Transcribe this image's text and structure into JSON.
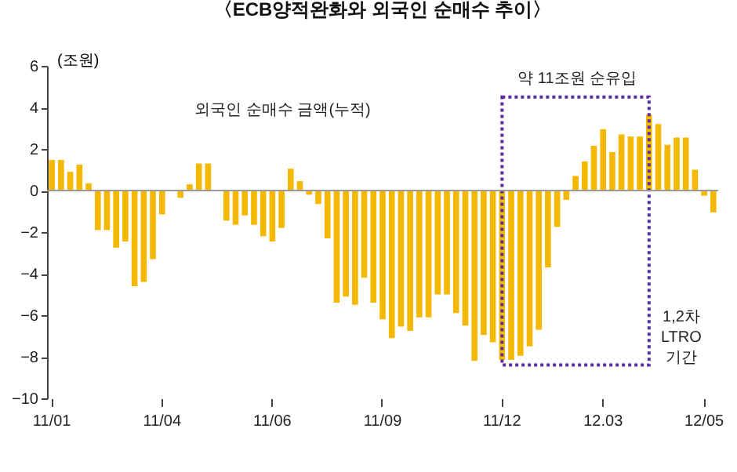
{
  "chart_data": {
    "type": "bar",
    "title": "〈ECB양적완화와 외국인 순매수 추이〉",
    "ylabel": "(조원)",
    "categories": [
      "11/01",
      null,
      null,
      null,
      null,
      null,
      null,
      null,
      null,
      null,
      null,
      null,
      "11/04",
      null,
      null,
      null,
      null,
      null,
      null,
      null,
      null,
      null,
      null,
      null,
      "11/06",
      null,
      null,
      null,
      null,
      null,
      null,
      null,
      null,
      null,
      null,
      null,
      "11/09",
      null,
      null,
      null,
      null,
      null,
      null,
      null,
      null,
      null,
      null,
      null,
      null,
      "11/12",
      null,
      null,
      null,
      null,
      null,
      null,
      null,
      null,
      null,
      null,
      "12.03",
      null,
      null,
      null,
      null,
      null,
      null,
      null,
      null,
      null,
      null,
      "12/05",
      null
    ],
    "values": [
      1.47,
      1.47,
      0.9,
      1.25,
      0.35,
      -1.9,
      -1.9,
      -2.75,
      -2.45,
      -4.6,
      -4.4,
      -3.3,
      -1.15,
      0,
      -0.35,
      0.3,
      1.3,
      1.3,
      0,
      -1.45,
      -1.65,
      -1.2,
      -1.65,
      -2.2,
      -2.45,
      -1.8,
      1.05,
      0.45,
      -0.2,
      -0.65,
      -2.3,
      -5.4,
      -5.1,
      -5.5,
      -4.2,
      -5.4,
      -6.2,
      -7.1,
      -6.55,
      -6.75,
      -6.1,
      -6.1,
      -5.0,
      -5.0,
      -5.9,
      -6.5,
      -8.2,
      -6.95,
      -7.3,
      -8.15,
      -8.15,
      -7.95,
      -7.5,
      -6.7,
      -3.7,
      -1.75,
      -0.45,
      0.7,
      1.4,
      2.15,
      2.95,
      1.85,
      2.7,
      2.6,
      2.6,
      3.65,
      3.2,
      2.2,
      2.55,
      2.55,
      1.0,
      -0.25,
      -1.05
    ],
    "color": "#f5b800",
    "ylim": [
      -10,
      6
    ],
    "yticks": [
      -10,
      -8,
      -6,
      -4,
      -2,
      0,
      2,
      4,
      6
    ],
    "ref_lines": [
      {
        "axis": "y",
        "value": 0,
        "color": "#999999"
      }
    ],
    "annotations": [
      "외국인 순매수 금액(누적)",
      "1,2차 LTRO 기간",
      "약 11조원 순유입"
    ]
  }
}
